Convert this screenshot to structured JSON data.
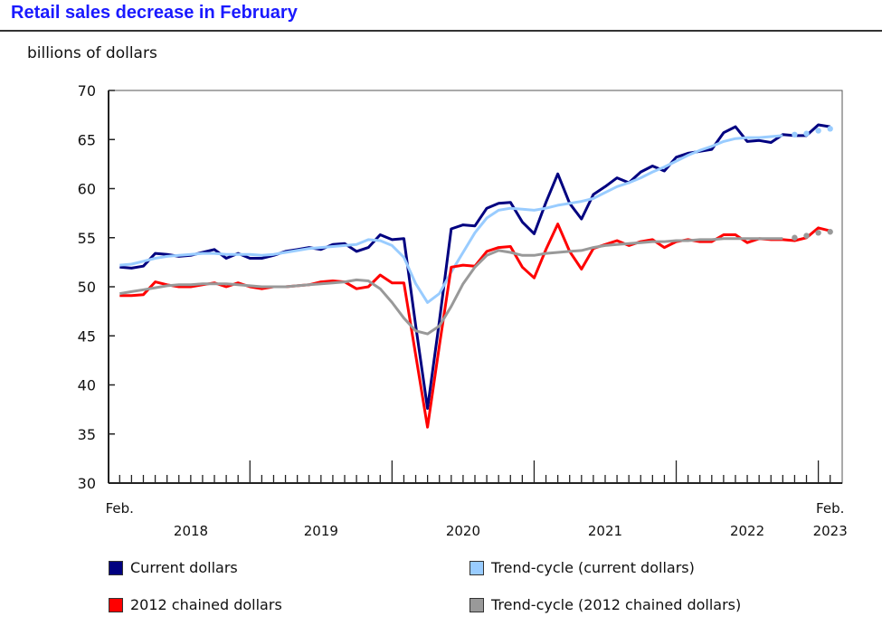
{
  "chart_data": {
    "type": "line",
    "title": "Retail sales decrease in February",
    "ylabel": "billions of dollars",
    "ylim": [
      30,
      70
    ],
    "yticks": [
      30,
      35,
      40,
      45,
      50,
      55,
      60,
      65,
      70
    ],
    "x_start": "Feb. 2018",
    "x_end": "Feb. 2023",
    "x_frequency": "monthly",
    "x_first_label": "Feb.",
    "x_last_label": "Feb.",
    "years": [
      "2018",
      "2019",
      "2020",
      "2021",
      "2022",
      "2023"
    ],
    "grid": false,
    "legend_placement": "bottom",
    "preliminary_trend_points_dotted": 4,
    "series": [
      {
        "name": "Current dollars",
        "color": "#000080",
        "values": [
          52.0,
          51.9,
          52.1,
          53.4,
          53.3,
          53.1,
          53.2,
          53.5,
          53.8,
          52.9,
          53.4,
          52.9,
          52.9,
          53.2,
          53.6,
          53.8,
          54.0,
          53.8,
          54.3,
          54.4,
          53.6,
          54.0,
          55.3,
          54.8,
          54.9,
          46.0,
          37.6,
          46.5,
          55.9,
          56.3,
          56.2,
          58.0,
          58.5,
          58.6,
          56.6,
          55.4,
          58.6,
          61.5,
          58.5,
          56.9,
          59.4,
          60.2,
          61.1,
          60.6,
          61.7,
          62.3,
          61.8,
          63.2,
          63.6,
          63.8,
          64.0,
          65.7,
          66.3,
          64.8,
          64.9,
          64.7,
          65.5,
          65.4,
          65.4,
          66.5,
          66.3
        ]
      },
      {
        "name": "Trend-cycle (current dollars)",
        "color": "#99ccff",
        "values": [
          52.2,
          52.3,
          52.6,
          52.9,
          53.1,
          53.2,
          53.3,
          53.4,
          53.4,
          53.3,
          53.3,
          53.3,
          53.2,
          53.3,
          53.5,
          53.7,
          53.9,
          54.0,
          54.1,
          54.2,
          54.3,
          54.8,
          54.7,
          54.2,
          53.0,
          50.3,
          48.4,
          49.3,
          51.5,
          53.5,
          55.5,
          57.0,
          57.8,
          58.0,
          57.9,
          57.8,
          58.0,
          58.3,
          58.5,
          58.7,
          59.0,
          59.6,
          60.2,
          60.6,
          61.1,
          61.7,
          62.2,
          62.8,
          63.4,
          63.9,
          64.3,
          64.8,
          65.1,
          65.2,
          65.2,
          65.3,
          65.4,
          65.5,
          65.6,
          65.9,
          66.1
        ]
      },
      {
        "name": "2012 chained dollars",
        "color": "#ff0000",
        "values": [
          49.1,
          49.1,
          49.2,
          50.5,
          50.2,
          50.0,
          50.0,
          50.2,
          50.4,
          50.0,
          50.4,
          50.0,
          49.8,
          50.0,
          50.0,
          50.1,
          50.2,
          50.5,
          50.6,
          50.5,
          49.8,
          50.0,
          51.2,
          50.4,
          50.4,
          43.0,
          35.7,
          44.0,
          52.0,
          52.2,
          52.1,
          53.6,
          54.0,
          54.1,
          52.0,
          50.9,
          53.8,
          56.4,
          53.6,
          51.8,
          53.9,
          54.3,
          54.7,
          54.2,
          54.6,
          54.8,
          54.0,
          54.6,
          54.8,
          54.6,
          54.6,
          55.3,
          55.3,
          54.5,
          54.9,
          54.8,
          54.8,
          54.7,
          55.0,
          56.0,
          55.7
        ]
      },
      {
        "name": "Trend-cycle (2012 chained dollars)",
        "color": "#999999",
        "values": [
          49.3,
          49.5,
          49.7,
          49.9,
          50.1,
          50.2,
          50.2,
          50.3,
          50.3,
          50.3,
          50.2,
          50.1,
          50.0,
          50.0,
          50.0,
          50.1,
          50.2,
          50.3,
          50.4,
          50.5,
          50.7,
          50.6,
          49.8,
          48.4,
          46.8,
          45.5,
          45.2,
          46.0,
          48.0,
          50.3,
          52.0,
          53.2,
          53.7,
          53.5,
          53.2,
          53.2,
          53.4,
          53.5,
          53.6,
          53.7,
          54.0,
          54.2,
          54.3,
          54.4,
          54.5,
          54.6,
          54.6,
          54.7,
          54.7,
          54.8,
          54.8,
          54.9,
          54.9,
          54.9,
          54.9,
          54.9,
          54.9,
          55.0,
          55.2,
          55.5,
          55.6
        ]
      }
    ]
  }
}
